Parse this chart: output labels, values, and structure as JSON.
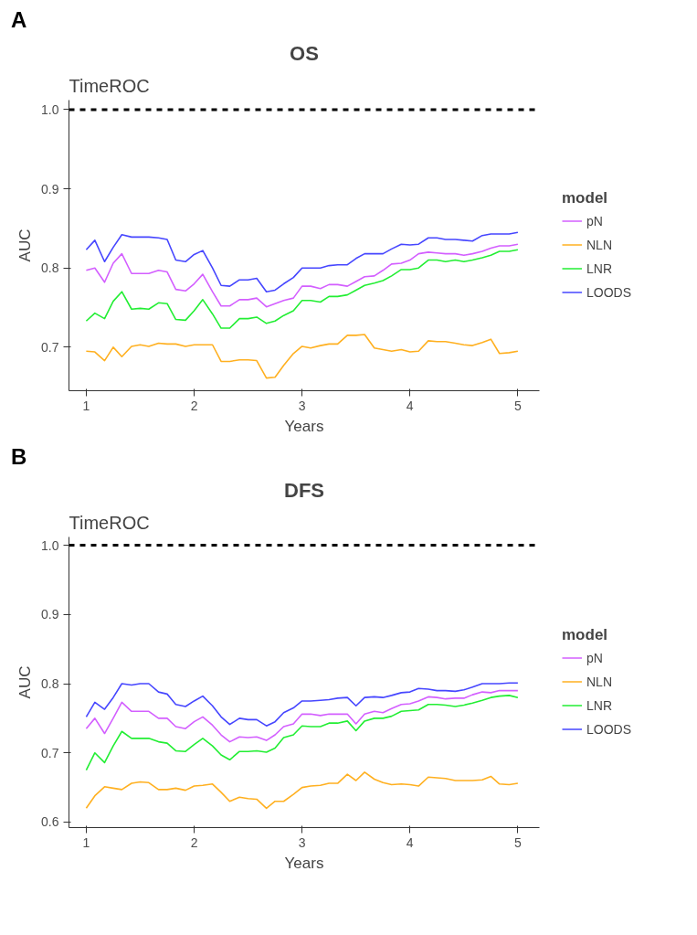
{
  "chart_data": [
    {
      "type": "line",
      "title": "OS",
      "subtitle": "TimeROC",
      "annotations": [
        "A"
      ],
      "xlabel": "Years",
      "ylabel": "AUC",
      "legend_title": "model",
      "legend": "right",
      "grid": false,
      "line_style": "solid",
      "x": [
        1,
        1.08,
        1.17,
        1.25,
        1.33,
        1.42,
        1.5,
        1.58,
        1.67,
        1.75,
        1.83,
        1.92,
        2,
        2.08,
        2.17,
        2.25,
        2.33,
        2.42,
        2.5,
        2.58,
        2.67,
        2.75,
        2.83,
        2.92,
        3,
        3.08,
        3.17,
        3.25,
        3.33,
        3.42,
        3.5,
        3.58,
        3.67,
        3.75,
        3.83,
        3.92,
        4,
        4.08,
        4.17,
        4.25,
        4.33,
        4.42,
        4.5,
        4.58,
        4.67,
        4.75,
        4.83,
        4.92,
        5
      ],
      "xlim": [
        0.84,
        5.2
      ],
      "xticks": [
        1,
        2,
        3,
        4,
        5
      ],
      "ylim": [
        0.645,
        1.012
      ],
      "yticks": [
        0.7,
        0.8,
        0.9,
        {
          "value": 1,
          "label": "1.0"
        }
      ],
      "ref_lines": [
        {
          "axis": "y",
          "value": 1.0,
          "label": null,
          "color": "#000000",
          "line_style": "dashed"
        }
      ],
      "series": [
        {
          "name": "pN",
          "color": "#d35fff",
          "values": [
            0.797,
            0.8,
            0.782,
            0.806,
            0.818,
            0.793,
            0.793,
            0.793,
            0.797,
            0.795,
            0.773,
            0.771,
            0.78,
            0.792,
            0.77,
            0.752,
            0.752,
            0.76,
            0.76,
            0.762,
            0.751,
            0.755,
            0.759,
            0.762,
            0.777,
            0.777,
            0.774,
            0.779,
            0.779,
            0.777,
            0.783,
            0.789,
            0.79,
            0.797,
            0.805,
            0.806,
            0.81,
            0.818,
            0.82,
            0.819,
            0.818,
            0.818,
            0.816,
            0.818,
            0.821,
            0.825,
            0.828,
            0.828,
            0.83
          ]
        },
        {
          "name": "NLN",
          "color": "#ffb020",
          "values": [
            0.695,
            0.694,
            0.683,
            0.7,
            0.688,
            0.701,
            0.703,
            0.701,
            0.705,
            0.704,
            0.704,
            0.701,
            0.703,
            0.703,
            0.703,
            0.682,
            0.682,
            0.684,
            0.684,
            0.683,
            0.661,
            0.662,
            0.677,
            0.692,
            0.701,
            0.699,
            0.702,
            0.704,
            0.704,
            0.715,
            0.715,
            0.716,
            0.699,
            0.697,
            0.695,
            0.697,
            0.694,
            0.695,
            0.708,
            0.707,
            0.707,
            0.705,
            0.703,
            0.702,
            0.706,
            0.71,
            0.692,
            0.693,
            0.695
          ]
        },
        {
          "name": "LNR",
          "color": "#22ee33",
          "values": [
            0.733,
            0.743,
            0.736,
            0.758,
            0.77,
            0.748,
            0.749,
            0.748,
            0.756,
            0.755,
            0.735,
            0.734,
            0.746,
            0.76,
            0.742,
            0.724,
            0.724,
            0.736,
            0.736,
            0.738,
            0.73,
            0.733,
            0.74,
            0.746,
            0.759,
            0.759,
            0.757,
            0.764,
            0.764,
            0.766,
            0.772,
            0.778,
            0.781,
            0.784,
            0.79,
            0.798,
            0.798,
            0.8,
            0.81,
            0.81,
            0.808,
            0.81,
            0.808,
            0.81,
            0.813,
            0.816,
            0.821,
            0.821,
            0.823
          ]
        },
        {
          "name": "LOODS",
          "color": "#4646ff",
          "values": [
            0.823,
            0.835,
            0.808,
            0.826,
            0.842,
            0.839,
            0.839,
            0.839,
            0.838,
            0.836,
            0.81,
            0.808,
            0.817,
            0.822,
            0.8,
            0.778,
            0.777,
            0.785,
            0.785,
            0.787,
            0.77,
            0.772,
            0.78,
            0.788,
            0.8,
            0.8,
            0.8,
            0.803,
            0.804,
            0.804,
            0.812,
            0.818,
            0.818,
            0.818,
            0.824,
            0.83,
            0.829,
            0.83,
            0.838,
            0.838,
            0.836,
            0.836,
            0.835,
            0.834,
            0.841,
            0.843,
            0.843,
            0.843,
            0.845
          ]
        }
      ]
    },
    {
      "type": "line",
      "title": "DFS",
      "subtitle": "TimeROC",
      "annotations": [
        "B"
      ],
      "xlabel": "Years",
      "ylabel": "AUC",
      "legend_title": "model",
      "legend": "right",
      "grid": false,
      "line_style": "solid",
      "x": [
        1,
        1.08,
        1.17,
        1.25,
        1.33,
        1.42,
        1.5,
        1.58,
        1.67,
        1.75,
        1.83,
        1.92,
        2,
        2.08,
        2.17,
        2.25,
        2.33,
        2.42,
        2.5,
        2.58,
        2.67,
        2.75,
        2.83,
        2.92,
        3,
        3.08,
        3.17,
        3.25,
        3.33,
        3.42,
        3.5,
        3.58,
        3.67,
        3.75,
        3.83,
        3.92,
        4,
        4.08,
        4.17,
        4.25,
        4.33,
        4.42,
        4.5,
        4.58,
        4.67,
        4.75,
        4.83,
        4.92,
        5
      ],
      "xlim": [
        0.84,
        5.2
      ],
      "xticks": [
        1,
        2,
        3,
        4,
        5
      ],
      "ylim": [
        0.592,
        1.012
      ],
      "yticks": [
        0.6,
        0.7,
        0.8,
        0.9,
        {
          "value": 1,
          "label": "1.0"
        }
      ],
      "ref_lines": [
        {
          "axis": "y",
          "value": 1.0,
          "label": null,
          "color": "#000000",
          "line_style": "dashed"
        }
      ],
      "series": [
        {
          "name": "pN",
          "color": "#d35fff",
          "values": [
            0.735,
            0.75,
            0.728,
            0.75,
            0.773,
            0.76,
            0.76,
            0.76,
            0.75,
            0.75,
            0.738,
            0.735,
            0.745,
            0.752,
            0.74,
            0.726,
            0.716,
            0.723,
            0.722,
            0.723,
            0.718,
            0.726,
            0.738,
            0.742,
            0.756,
            0.756,
            0.754,
            0.756,
            0.756,
            0.756,
            0.742,
            0.756,
            0.76,
            0.758,
            0.764,
            0.77,
            0.771,
            0.775,
            0.781,
            0.78,
            0.778,
            0.779,
            0.779,
            0.784,
            0.788,
            0.787,
            0.79,
            0.79,
            0.79
          ]
        },
        {
          "name": "NLN",
          "color": "#ffb020",
          "values": [
            0.62,
            0.638,
            0.651,
            0.649,
            0.647,
            0.656,
            0.658,
            0.657,
            0.647,
            0.647,
            0.649,
            0.646,
            0.652,
            0.653,
            0.655,
            0.643,
            0.63,
            0.636,
            0.634,
            0.633,
            0.62,
            0.63,
            0.63,
            0.64,
            0.65,
            0.652,
            0.653,
            0.656,
            0.656,
            0.669,
            0.66,
            0.672,
            0.662,
            0.657,
            0.654,
            0.655,
            0.654,
            0.652,
            0.665,
            0.664,
            0.663,
            0.66,
            0.66,
            0.66,
            0.661,
            0.666,
            0.655,
            0.654,
            0.656
          ]
        },
        {
          "name": "LNR",
          "color": "#22ee33",
          "values": [
            0.675,
            0.7,
            0.686,
            0.71,
            0.731,
            0.721,
            0.721,
            0.721,
            0.716,
            0.714,
            0.703,
            0.702,
            0.712,
            0.721,
            0.71,
            0.697,
            0.69,
            0.702,
            0.702,
            0.703,
            0.701,
            0.707,
            0.722,
            0.726,
            0.739,
            0.738,
            0.738,
            0.743,
            0.743,
            0.746,
            0.732,
            0.746,
            0.75,
            0.75,
            0.753,
            0.76,
            0.761,
            0.762,
            0.77,
            0.77,
            0.769,
            0.767,
            0.769,
            0.772,
            0.776,
            0.78,
            0.782,
            0.783,
            0.78
          ]
        },
        {
          "name": "LOODS",
          "color": "#4646ff",
          "values": [
            0.752,
            0.773,
            0.763,
            0.78,
            0.8,
            0.798,
            0.8,
            0.8,
            0.788,
            0.785,
            0.77,
            0.767,
            0.775,
            0.782,
            0.768,
            0.752,
            0.741,
            0.75,
            0.748,
            0.748,
            0.739,
            0.745,
            0.758,
            0.765,
            0.775,
            0.775,
            0.776,
            0.777,
            0.779,
            0.78,
            0.768,
            0.78,
            0.781,
            0.78,
            0.783,
            0.787,
            0.788,
            0.793,
            0.792,
            0.79,
            0.79,
            0.789,
            0.791,
            0.795,
            0.8,
            0.8,
            0.8,
            0.801,
            0.801
          ]
        }
      ]
    }
  ]
}
